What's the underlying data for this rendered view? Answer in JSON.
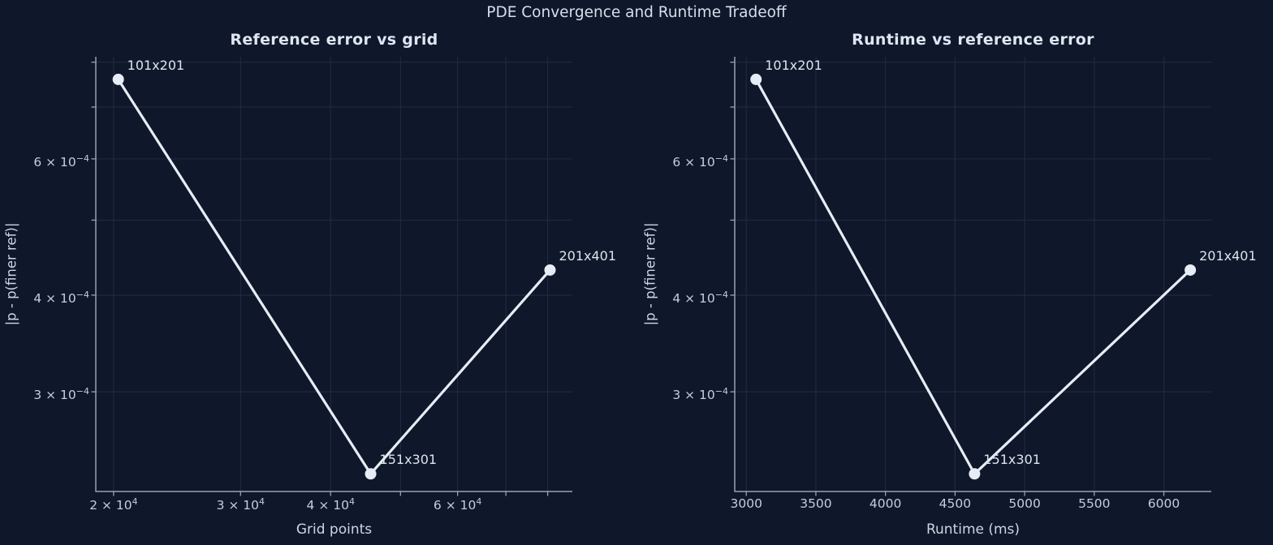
{
  "figure": {
    "suptitle": "PDE Convergence and Runtime Tradeoff",
    "background_color": "#0f172a",
    "line_color": "#e7edf6",
    "grid_color": "#202b41",
    "axis_color": "#96a2b4",
    "text_color": "#dce4ef"
  },
  "chart_data": [
    {
      "type": "line",
      "title": "Reference error vs grid",
      "xlabel": "Grid points",
      "ylabel": "|p - p(finer ref)|",
      "xscale": "log",
      "yscale": "log",
      "grid": true,
      "legend": "none",
      "xlim": [
        18895,
        86560
      ],
      "ylim": [
        0.000223,
        0.000813
      ],
      "point_labels": [
        "101x201",
        "151x301",
        "201x401"
      ],
      "x": [
        20301,
        45451,
        80601
      ],
      "y": [
        0.00076,
        0.000235,
        0.000431
      ],
      "xticks": [
        {
          "value": 20000,
          "label": "2 × 10^4"
        },
        {
          "value": 30000,
          "label": "3 × 10^4"
        },
        {
          "value": 40000,
          "label": "4 × 10^4"
        },
        {
          "value": 50000
        },
        {
          "value": 60000,
          "label": "6 × 10^4"
        },
        {
          "value": 70000
        },
        {
          "value": 80000
        }
      ],
      "yticks": [
        {
          "value": 0.0003,
          "label": "3 × 10^-4"
        },
        {
          "value": 0.0004,
          "label": "4 × 10^-4"
        },
        {
          "value": 0.0005
        },
        {
          "value": 0.0006,
          "label": "6 × 10^-4"
        },
        {
          "value": 0.0007
        },
        {
          "value": 0.0008
        }
      ]
    },
    {
      "type": "line",
      "title": "Runtime vs reference error",
      "xlabel": "Runtime (ms)",
      "ylabel": "|p - p(finer ref)|",
      "xscale": "linear",
      "yscale": "log",
      "grid": true,
      "legend": "none",
      "xlim": [
        2917,
        6341
      ],
      "ylim": [
        0.000223,
        0.000813
      ],
      "point_labels": [
        "101x201",
        "151x301",
        "201x401"
      ],
      "x": [
        3070,
        4640,
        6190
      ],
      "y": [
        0.00076,
        0.000235,
        0.000431
      ],
      "xticks": [
        {
          "value": 3000,
          "label": "3000"
        },
        {
          "value": 3500,
          "label": "3500"
        },
        {
          "value": 4000,
          "label": "4000"
        },
        {
          "value": 4500,
          "label": "4500"
        },
        {
          "value": 5000,
          "label": "5000"
        },
        {
          "value": 5500,
          "label": "5500"
        },
        {
          "value": 6000,
          "label": "6000"
        }
      ],
      "yticks": [
        {
          "value": 0.0003,
          "label": "3 × 10^-4"
        },
        {
          "value": 0.0004,
          "label": "4 × 10^-4"
        },
        {
          "value": 0.0005
        },
        {
          "value": 0.0006,
          "label": "6 × 10^-4"
        },
        {
          "value": 0.0007
        },
        {
          "value": 0.0008
        }
      ]
    }
  ]
}
